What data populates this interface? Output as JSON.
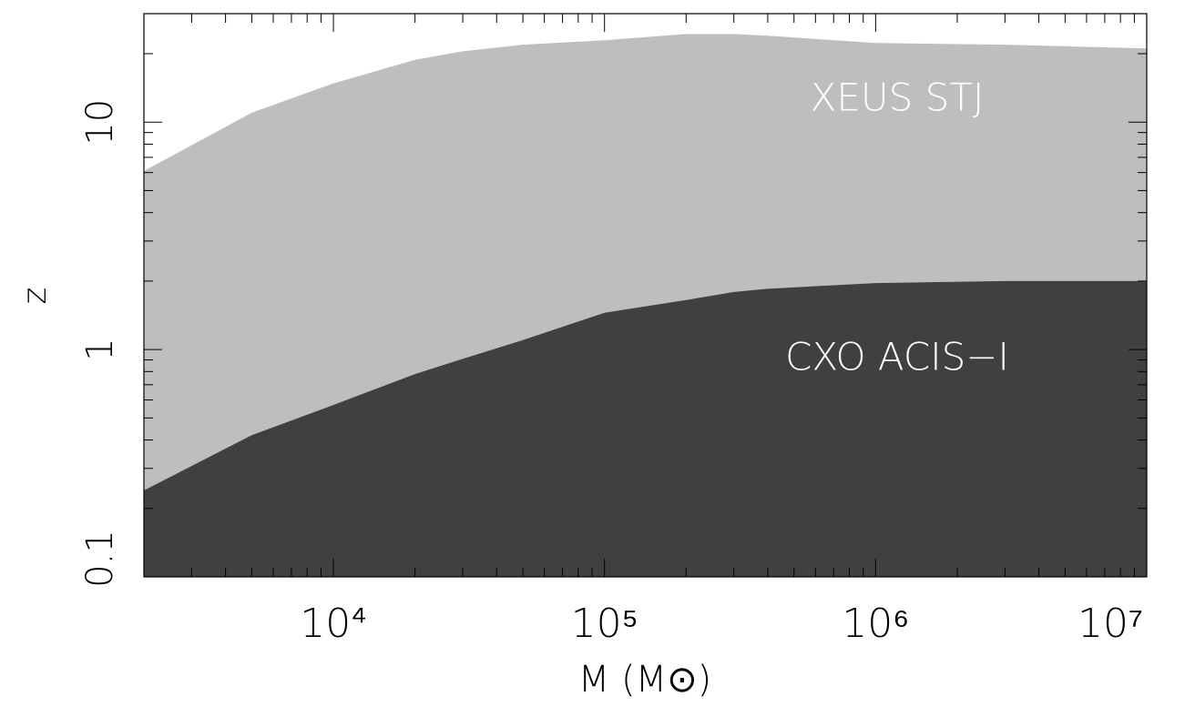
{
  "chart_data": {
    "type": "area",
    "x_label": "M (M⊙)",
    "y_label": "z",
    "x": [
      2000,
      5000,
      10000,
      20000,
      30000,
      50000,
      100000,
      200000,
      300000,
      400000,
      1000000,
      3000000,
      10000000
    ],
    "series": [
      {
        "name": "XEUS STJ",
        "color": "#bebebe",
        "values": [
          6.1,
          11,
          14.8,
          18.8,
          20.5,
          21.9,
          22.9,
          24.4,
          24.4,
          24,
          22.3,
          21.9,
          21.1
        ]
      },
      {
        "name": "CXO ACIS−I",
        "color": "#404040",
        "values": [
          0.24,
          0.42,
          0.57,
          0.78,
          0.91,
          1.1,
          1.45,
          1.65,
          1.79,
          1.85,
          1.96,
          2.0,
          2.0
        ]
      }
    ],
    "xscale": "log",
    "yscale": "log",
    "xlim": [
      2000,
      10000000
    ],
    "ylim": [
      0.1,
      30
    ],
    "xticks": [
      {
        "value": 10000,
        "label": "10⁴"
      },
      {
        "value": 100000,
        "label": "10⁵"
      },
      {
        "value": 1000000,
        "label": "10⁶"
      },
      {
        "value": 10000000,
        "label": "10⁷"
      }
    ],
    "yticks": [
      0.1,
      1,
      10
    ]
  }
}
